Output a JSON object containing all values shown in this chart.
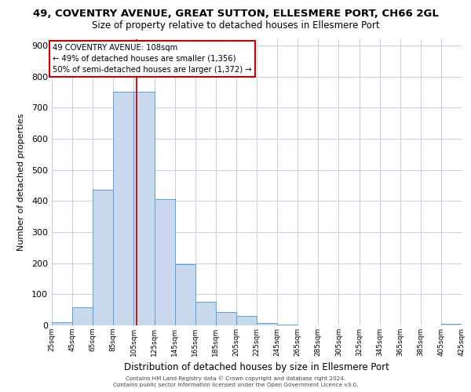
{
  "title_line1": "49, COVENTRY AVENUE, GREAT SUTTON, ELLESMERE PORT, CH66 2GL",
  "title_line2": "Size of property relative to detached houses in Ellesmere Port",
  "xlabel": "Distribution of detached houses by size in Ellesmere Port",
  "ylabel": "Number of detached properties",
  "bin_edges": [
    25,
    45,
    65,
    85,
    105,
    125,
    145,
    165,
    185,
    205,
    225,
    245,
    265,
    285,
    305,
    325,
    345,
    365,
    385,
    405,
    425
  ],
  "bar_heights": [
    10,
    57,
    435,
    750,
    750,
    405,
    197,
    75,
    43,
    30,
    8,
    3,
    0,
    0,
    0,
    0,
    0,
    0,
    0,
    5
  ],
  "bar_color": "#c8d9ed",
  "bar_edge_color": "#5a9fd4",
  "vline_color": "#cc0000",
  "vline_x": 108,
  "annotation_line1": "49 COVENTRY AVENUE: 108sqm",
  "annotation_line2": "← 49% of detached houses are smaller (1,356)",
  "annotation_line3": "50% of semi-detached houses are larger (1,372) →",
  "annotation_box_color": "#cc0000",
  "ylim": [
    0,
    920
  ],
  "yticks": [
    0,
    100,
    200,
    300,
    400,
    500,
    600,
    700,
    800,
    900
  ],
  "xtick_labels": [
    "25sqm",
    "45sqm",
    "65sqm",
    "85sqm",
    "105sqm",
    "125sqm",
    "145sqm",
    "165sqm",
    "185sqm",
    "205sqm",
    "225sqm",
    "245sqm",
    "265sqm",
    "285sqm",
    "305sqm",
    "325sqm",
    "345sqm",
    "365sqm",
    "385sqm",
    "405sqm",
    "425sqm"
  ],
  "footer_line1": "Contains HM Land Registry data © Crown copyright and database right 2024.",
  "footer_line2": "Contains public sector information licensed under the Open Government Licence v3.0.",
  "bg_color": "#ffffff",
  "grid_color": "#c0d0e8",
  "title_fontsize": 9.5,
  "subtitle_fontsize": 8.5,
  "title_fontweight": "normal"
}
